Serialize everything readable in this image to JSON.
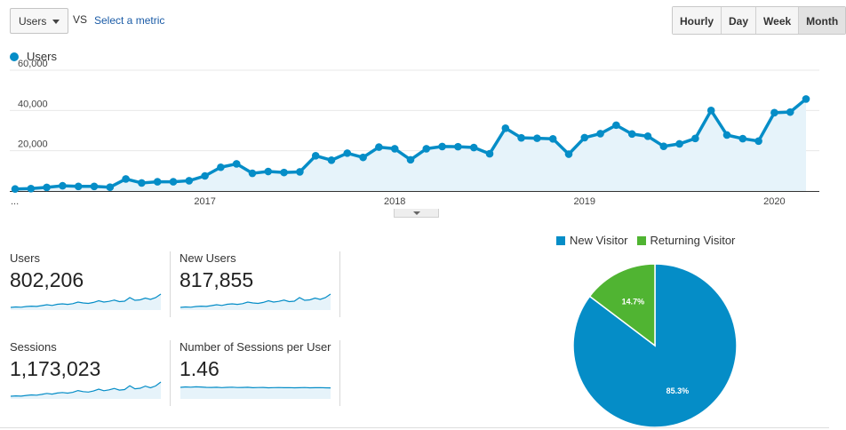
{
  "toolbar": {
    "metric_select": "Users",
    "vs_label": "VS",
    "select_metric_link": "Select a metric",
    "periods": [
      "Hourly",
      "Day",
      "Week",
      "Month"
    ],
    "active_period": "Month"
  },
  "chart_legend": "Users",
  "chart_data": [
    {
      "type": "area",
      "series": [
        {
          "name": "Users",
          "values": [
            1000,
            1200,
            1800,
            2600,
            2300,
            2300,
            1900,
            6000,
            4000,
            4600,
            4600,
            5100,
            7500,
            11800,
            13500,
            8800,
            9700,
            9200,
            9500,
            17500,
            15300,
            18800,
            16700,
            21800,
            21000,
            15500,
            21000,
            22100,
            22000,
            21600,
            18500,
            31200,
            26400,
            26200,
            25900,
            18300,
            26500,
            28500,
            32700,
            28300,
            27200,
            22200,
            23400,
            26100,
            40000,
            27800,
            26000,
            24800,
            38900,
            39200,
            45700
          ]
        }
      ],
      "x_tick_labels": [
        "...",
        "2017",
        "2018",
        "2019",
        "2020"
      ],
      "y_tick_labels": [
        "20,000",
        "40,000",
        "60,000"
      ],
      "ylim": [
        0,
        60000
      ],
      "color": "#058dc7",
      "fill_color": "#e6f3fa",
      "grid": true,
      "legend": "top-left"
    },
    {
      "type": "pie",
      "categories": [
        "New Visitor",
        "Returning Visitor"
      ],
      "values": [
        85.3,
        14.7
      ],
      "slice_labels": [
        "85.3%",
        "14.7%"
      ],
      "colors": [
        "#058dc7",
        "#50b432"
      ],
      "legend": "top"
    }
  ],
  "scorecards": [
    {
      "label": "Users",
      "value": "802,206"
    },
    {
      "label": "New Users",
      "value": "817,855"
    },
    {
      "label": "Sessions",
      "value": "1,173,023"
    },
    {
      "label": "Number of Sessions per User",
      "value": "1.46"
    }
  ],
  "sparklines": {
    "users": [
      3,
      3.5,
      3.2,
      4,
      4.4,
      4.1,
      5,
      6,
      5.2,
      6.5,
      7,
      6.4,
      7.2,
      9,
      8,
      7.5,
      8.6,
      10.5,
      9,
      9.8,
      11.2,
      9.5,
      10,
      14,
      11,
      11.5,
      13.5,
      12,
      14,
      18
    ],
    "new_users": [
      3,
      3.5,
      3.2,
      4,
      4.4,
      4.1,
      5,
      6,
      5.2,
      6.5,
      7,
      6.4,
      7.2,
      9,
      8,
      7.5,
      8.6,
      10.5,
      9,
      9.8,
      11.2,
      9.5,
      10,
      14,
      11,
      11.5,
      13.5,
      12,
      14,
      18
    ],
    "sessions": [
      3,
      3.4,
      3.1,
      3.9,
      4.5,
      4.2,
      5.1,
      6.2,
      5.4,
      6.6,
      7.2,
      6.5,
      7.4,
      9.4,
      8.2,
      7.7,
      8.9,
      11,
      9.2,
      10.2,
      11.8,
      9.9,
      10.5,
      14.8,
      11.4,
      12,
      14.4,
      12.5,
      14.6,
      19
    ],
    "sessions_per_user": [
      13,
      13.5,
      13.2,
      13.6,
      13.4,
      13,
      12.9,
      13.1,
      12.7,
      13,
      13.2,
      12.8,
      12.9,
      13.1,
      12.6,
      12.8,
      12.9,
      12.5,
      12.7,
      12.8,
      12.6,
      12.7,
      12.5,
      12.6,
      12.8,
      12.5,
      12.6,
      12.7,
      12.5,
      12.4
    ],
    "color": "#058dc7",
    "fill_color": "#e6f3fa"
  }
}
